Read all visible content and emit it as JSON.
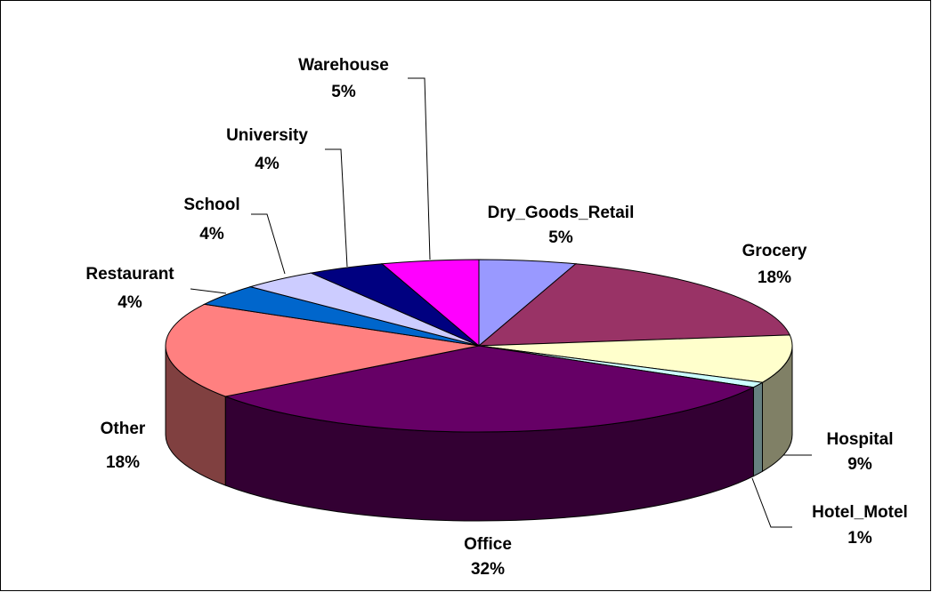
{
  "chart_data": {
    "type": "pie3d",
    "categories": [
      "Dry_Goods_Retail",
      "Grocery",
      "Hospital",
      "Hotel_Motel",
      "Office",
      "Other",
      "Restaurant",
      "School",
      "University",
      "Warehouse"
    ],
    "values": [
      5,
      18,
      9,
      1,
      32,
      18,
      4,
      4,
      4,
      5
    ],
    "value_labels": [
      "5%",
      "18%",
      "9%",
      "1%",
      "32%",
      "18%",
      "4%",
      "4%",
      "4%",
      "5%"
    ],
    "colors": [
      "#9999ff",
      "#993366",
      "#ffffcc",
      "#ccffff",
      "#660066",
      "#ff8080",
      "#0066cc",
      "#ccccff",
      "#000080",
      "#ff00ff"
    ]
  }
}
